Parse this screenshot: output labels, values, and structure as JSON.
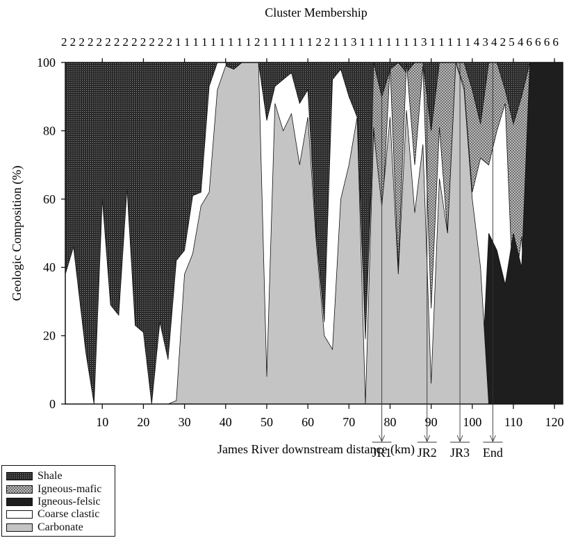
{
  "chart_data": {
    "type": "area",
    "title": "Cluster Membership",
    "xlabel": "James River downstream distance (km)",
    "ylabel": "Geologic Composition (%)",
    "xlim": [
      1,
      122
    ],
    "ylim": [
      0,
      100
    ],
    "xticks": [
      10,
      20,
      30,
      40,
      50,
      60,
      70,
      80,
      90,
      100,
      110,
      120
    ],
    "yticks": [
      0,
      20,
      40,
      60,
      80,
      100
    ],
    "stacked": true,
    "cluster_membership": "222222222222211111111121111112211311111113111114342546666",
    "markers": [
      {
        "label": "JR1",
        "x": 78
      },
      {
        "label": "JR2",
        "x": 89
      },
      {
        "label": "JR3",
        "x": 97
      },
      {
        "label": "End",
        "x": 105
      }
    ],
    "boundaries": {
      "x": [
        1,
        3,
        6,
        8,
        10,
        12,
        14,
        16,
        18,
        20,
        22,
        24,
        26,
        28,
        30,
        32,
        34,
        36,
        38,
        40,
        42,
        44,
        46,
        48,
        50,
        52,
        54,
        56,
        58,
        60,
        62,
        64,
        66,
        68,
        70,
        72,
        74,
        76,
        78,
        80,
        82,
        84,
        86,
        88,
        90,
        92,
        94,
        96,
        98,
        100,
        102,
        104,
        106,
        108,
        110,
        112,
        114,
        116,
        118,
        120,
        122
      ],
      "carbonate": [
        0,
        0,
        0,
        0,
        0,
        0,
        0,
        0,
        0,
        0,
        0,
        0,
        0,
        1,
        38,
        44,
        58,
        62,
        92,
        99,
        98,
        100,
        100,
        100,
        8,
        88,
        80,
        85,
        70,
        84,
        48,
        20,
        16,
        60,
        70,
        84,
        0,
        80,
        58,
        84,
        38,
        86,
        56,
        76,
        6,
        66,
        50,
        100,
        92,
        60,
        40,
        0,
        0,
        0,
        0,
        0,
        0,
        0,
        0,
        0,
        0
      ],
      "coarse_clastic": [
        38,
        46,
        15,
        0,
        60,
        29,
        26,
        63,
        23,
        21,
        0,
        24,
        13,
        42,
        45,
        61,
        62,
        93,
        100,
        100,
        86,
        100,
        100,
        100,
        83,
        93,
        95,
        97,
        88,
        92,
        50,
        24,
        95,
        98,
        90,
        84,
        19,
        81,
        53,
        99,
        40,
        100,
        70,
        99,
        28,
        81,
        50,
        100,
        93,
        62,
        72,
        70,
        80,
        88,
        30,
        49,
        0,
        0,
        0,
        0,
        0
      ],
      "igneous_felsic": [
        0,
        0,
        0,
        0,
        0,
        0,
        0,
        0,
        0,
        0,
        0,
        0,
        0,
        0,
        0,
        0,
        0,
        0,
        0,
        0,
        0,
        0,
        0,
        0,
        0,
        0,
        0,
        0,
        0,
        0,
        0,
        0,
        0,
        0,
        0,
        0,
        0,
        0,
        0,
        0,
        0,
        0,
        0,
        0,
        0,
        0,
        0,
        0,
        0,
        0,
        0,
        50,
        45,
        35,
        50,
        40,
        100,
        100,
        100,
        100,
        100
      ],
      "igneous_mafic": [
        0,
        0,
        0,
        0,
        0,
        0,
        0,
        0,
        0,
        0,
        0,
        0,
        0,
        0,
        0,
        0,
        0,
        0,
        0,
        0,
        0,
        0,
        0,
        0,
        0,
        0,
        0,
        0,
        0,
        0,
        0,
        0,
        0,
        0,
        0,
        0,
        0,
        100,
        90,
        98,
        100,
        97,
        100,
        100,
        80,
        100,
        100,
        100,
        100,
        92,
        82,
        100,
        100,
        92,
        82,
        90,
        100,
        74,
        62,
        56,
        76
      ]
    },
    "legend": [
      {
        "name": "Shale",
        "pattern": "shale"
      },
      {
        "name": "Igneous-mafic",
        "pattern": "mafic"
      },
      {
        "name": "Igneous-felsic",
        "pattern": "felsic"
      },
      {
        "name": "Coarse clastic",
        "pattern": "clastic"
      },
      {
        "name": "Carbonate",
        "pattern": "carbonate"
      }
    ],
    "colors": {
      "shale": "#2a2a2a",
      "mafic": "#6d6d6d",
      "felsic": "#1e1e1e",
      "clastic": "#ffffff",
      "carbonate": "#c4c4c4"
    }
  }
}
